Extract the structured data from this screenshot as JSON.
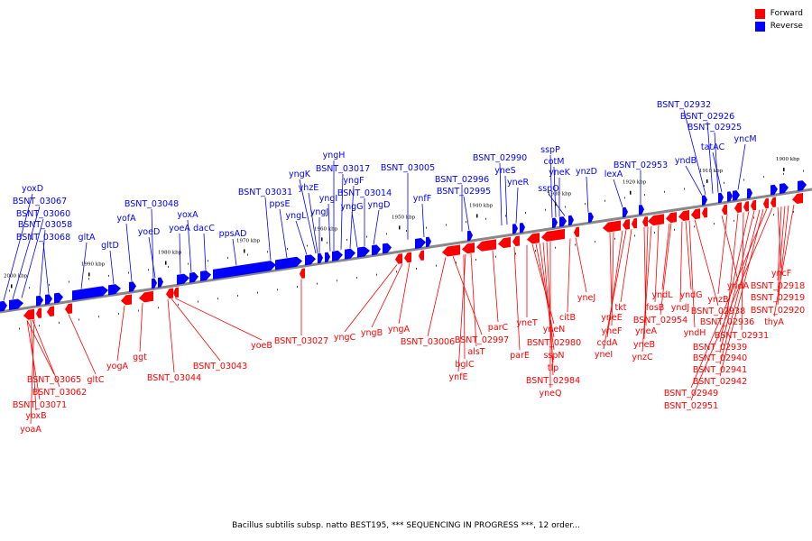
{
  "legend": {
    "forward_label": "Forward",
    "reverse_label": "Reverse",
    "forward_color": "#ff0000",
    "reverse_color": "#0000ff"
  },
  "caption": "Bacillus subtilis subsp. natto BEST195, *** SEQUENCING IN PROGRESS ***, 12 order...",
  "scale_labels": [
    "2000 kbp",
    "1990 kbp",
    "1980 kbp",
    "1970 kbp",
    "1960 kbp",
    "1950 kbp",
    "1940 kbp",
    "1930 kbp",
    "1920 kbp",
    "1910 kbp",
    "1900 kbp"
  ],
  "reverse_genes": [
    "yoxD",
    "BSNT_03067",
    "BSNT_03060",
    "BSNT_03058",
    "BSNT_03068",
    "gltA",
    "gltD",
    "yofA",
    "BSNT_03048",
    "yoeD",
    "yoeA",
    "yoxA",
    "dacC",
    "ppsAD",
    "BSNT_03031",
    "ppsE",
    "yngL",
    "yngK",
    "yhzE",
    "yngJ",
    "yngI",
    "yngH",
    "BSNT_03017",
    "yngF",
    "yngG",
    "BSNT_03014",
    "yngD",
    "BSNT_03005",
    "ynfF",
    "BSNT_02996",
    "BSNT_02995",
    "BSNT_02990",
    "yneS",
    "yneR",
    "sspP",
    "cotM",
    "yneK",
    "sspO",
    "ynzD",
    "lexA",
    "BSNT_02953",
    "yndB",
    "BSNT_02932",
    "BSNT_02926",
    "BSNT_02925",
    "tatAC",
    "yncM"
  ],
  "forward_genes": [
    "BSNT_03065",
    "BSNT_03062",
    "BSNT_03071",
    "yoxB",
    "yoaA",
    "gltC",
    "yogA",
    "ggt",
    "BSNT_03044",
    "BSNT_03043",
    "yoeB",
    "BSNT_03027",
    "yngC",
    "yngB",
    "yngA",
    "BSNT_03006",
    "BSNT_02997",
    "bglC",
    "ynfE",
    "alsT",
    "parC",
    "parE",
    "yneT",
    "yneN",
    "BSNT_02980",
    "sspN",
    "tlp",
    "BSNT_02984",
    "yneQ",
    "citB",
    "yneJ",
    "yneE",
    "yneF",
    "ccdA",
    "yneI",
    "tkt",
    "yneA",
    "yneB",
    "ynzC",
    "fosB",
    "yndL",
    "BSNT_02954",
    "yndJ",
    "yndG",
    "yndH",
    "BSNT_02938",
    "yndA",
    "ynzB",
    "BSNT_02936",
    "BSNT_02931",
    "BSNT_02939",
    "BSNT_02940",
    "BSNT_02941",
    "BSNT_02942",
    "BSNT_02949",
    "BSNT_02951",
    "yncF",
    "BSNT_02918",
    "BSNT_02919",
    "BSNT_02920",
    "thyA"
  ]
}
